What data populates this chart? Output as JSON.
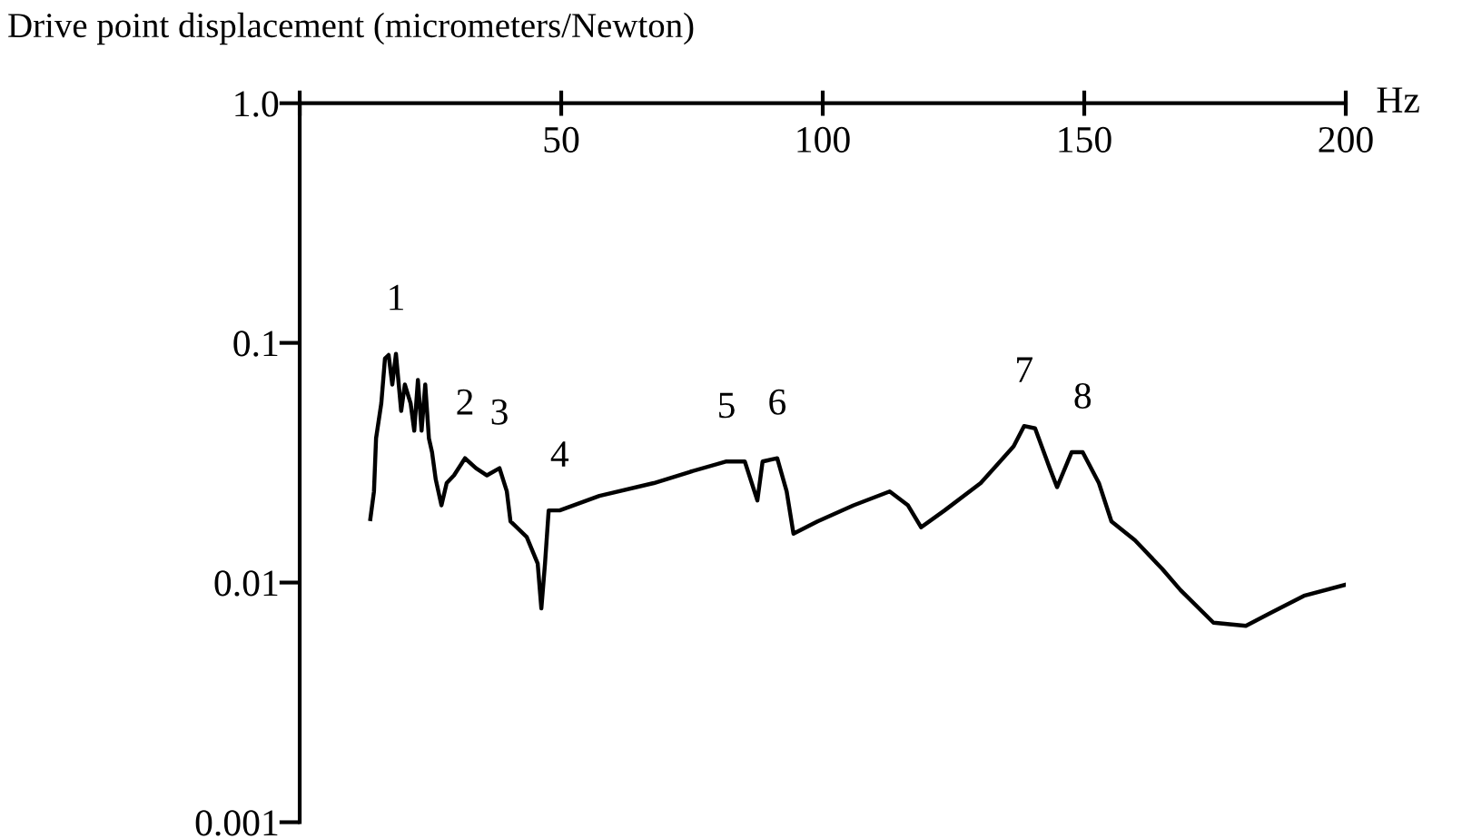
{
  "chart_data": {
    "type": "line",
    "ylabel": "Drive point displacement (micrometers/Newton)",
    "xlabel": "Hz",
    "log": true,
    "grid": false,
    "legend": false,
    "marker": "none",
    "line_style": "solid",
    "xlim": [
      0,
      200
    ],
    "xticks": [
      {
        "value": 0,
        "label": null
      },
      50,
      100,
      150,
      200
    ],
    "ylim": [
      0.001,
      1.0
    ],
    "yticks": [
      {
        "value": 0.001,
        "label": "0.001"
      },
      {
        "value": 0.01,
        "label": "0.01"
      },
      {
        "value": 0.1,
        "label": "0.1"
      },
      {
        "value": 1.0,
        "label": "1.0"
      }
    ],
    "x": [
      13.5,
      14.2,
      14.6,
      15.6,
      16.3,
      17.0,
      17.7,
      18.4,
      19.4,
      20.1,
      21.2,
      21.9,
      22.6,
      23.3,
      24.0,
      24.7,
      25.3,
      26.0,
      27.1,
      28.1,
      29.5,
      31.6,
      33.7,
      35.8,
      38.2,
      39.6,
      40.3,
      43.4,
      45.5,
      46.2,
      46.9,
      47.6,
      49.7,
      57.3,
      67.7,
      74.7,
      81.6,
      85.1,
      87.5,
      88.5,
      91.3,
      93.1,
      94.4,
      99.0,
      105.9,
      112.8,
      116.3,
      118.8,
      123.3,
      130.2,
      136.5,
      138.5,
      140.6,
      143.4,
      144.8,
      147.6,
      149.7,
      152.8,
      155.2,
      159.7,
      164.9,
      168.4,
      174.7,
      180.9,
      185.8,
      192.0,
      200.0
    ],
    "series": [
      {
        "color": "#000000",
        "values": [
          0.0184,
          0.024,
          0.04,
          0.056,
          0.086,
          0.089,
          0.067,
          0.09,
          0.052,
          0.067,
          0.056,
          0.043,
          0.07,
          0.043,
          0.067,
          0.04,
          0.035,
          0.027,
          0.021,
          0.026,
          0.028,
          0.033,
          0.03,
          0.028,
          0.03,
          0.024,
          0.018,
          0.0155,
          0.012,
          0.0078,
          0.012,
          0.02,
          0.02,
          0.023,
          0.026,
          0.029,
          0.032,
          0.032,
          0.022,
          0.032,
          0.033,
          0.024,
          0.016,
          0.018,
          0.021,
          0.024,
          0.021,
          0.017,
          0.02,
          0.026,
          0.037,
          0.045,
          0.044,
          0.03,
          0.025,
          0.035,
          0.035,
          0.026,
          0.018,
          0.015,
          0.0114,
          0.0093,
          0.0068,
          0.0066,
          0.0075,
          0.0088,
          0.0098
        ]
      }
    ],
    "annotations": [
      {
        "text": "1",
        "x": 18.4,
        "y": 0.09
      },
      {
        "text": "2",
        "x": 31.6,
        "y": 0.033
      },
      {
        "text": "3",
        "x": 38.2,
        "y": 0.03
      },
      {
        "text": "4",
        "x": 49.7,
        "y": 0.02
      },
      {
        "text": "5",
        "x": 81.6,
        "y": 0.032
      },
      {
        "text": "6",
        "x": 91.3,
        "y": 0.033
      },
      {
        "text": "7",
        "x": 138.5,
        "y": 0.045
      },
      {
        "text": "8",
        "x": 149.7,
        "y": 0.035
      }
    ]
  }
}
